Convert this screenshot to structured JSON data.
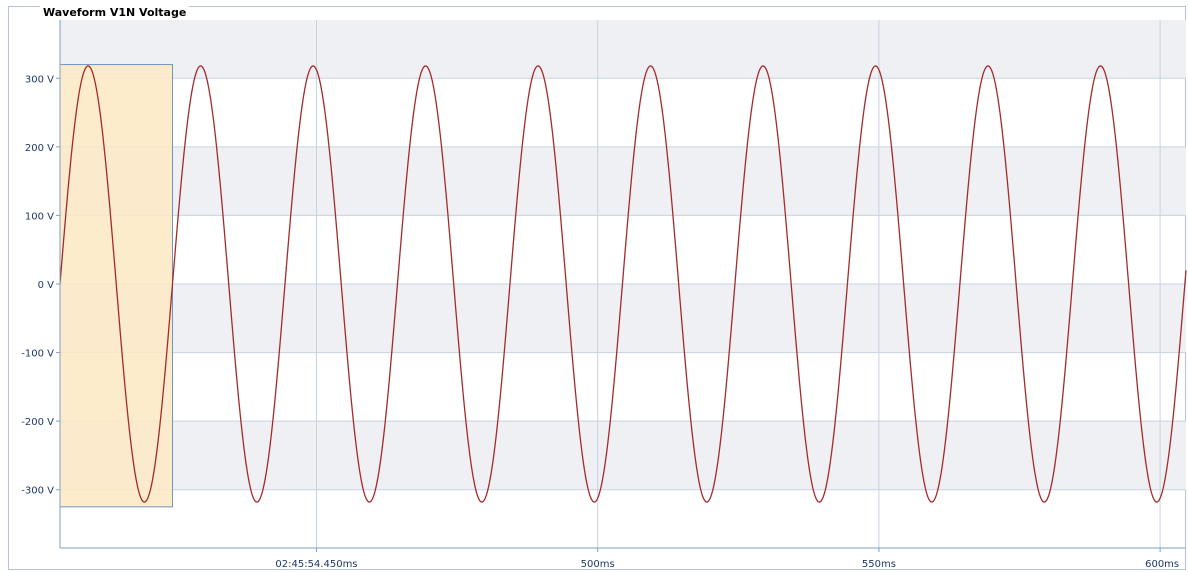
{
  "chart_data": {
    "type": "line",
    "title": "Waveform V1N Voltage",
    "x_unit": "ms",
    "x_start_label": "02:45:54.450ms",
    "x_ticks": [
      {
        "value": 450,
        "label": "02:45:54.450ms"
      },
      {
        "value": 500,
        "label": "500ms"
      },
      {
        "value": 550,
        "label": "550ms"
      },
      {
        "value": 600,
        "label": "600ms"
      }
    ],
    "xlim": [
      404.4,
      604.6
    ],
    "y_ticks": [
      {
        "value": 300,
        "label": "300 V"
      },
      {
        "value": 200,
        "label": "200 V"
      },
      {
        "value": 100,
        "label": "100 V"
      },
      {
        "value": 0,
        "label": "0 V"
      },
      {
        "value": -100,
        "label": "-100 V"
      },
      {
        "value": -200,
        "label": "-200 V"
      },
      {
        "value": -300,
        "label": "-300 V"
      }
    ],
    "ylim": [
      -385,
      385
    ],
    "series": [
      {
        "color": "#a52a2a",
        "waveform": "sine",
        "amplitude": 318,
        "period": 20,
        "phase_zero_crossing": 404.4,
        "x_start": 404.4,
        "x_end": 604.6
      }
    ],
    "highlight": {
      "x_range": [
        404.4,
        424.4
      ],
      "y_range": [
        -325,
        320
      ],
      "fill": "#fde9c3",
      "stroke": "#6f95b8"
    },
    "bands": {
      "fill": "#eef0f3"
    },
    "grid": true,
    "gridline_color": "#c7d3e2",
    "axis_color": "#7f9fc6"
  }
}
